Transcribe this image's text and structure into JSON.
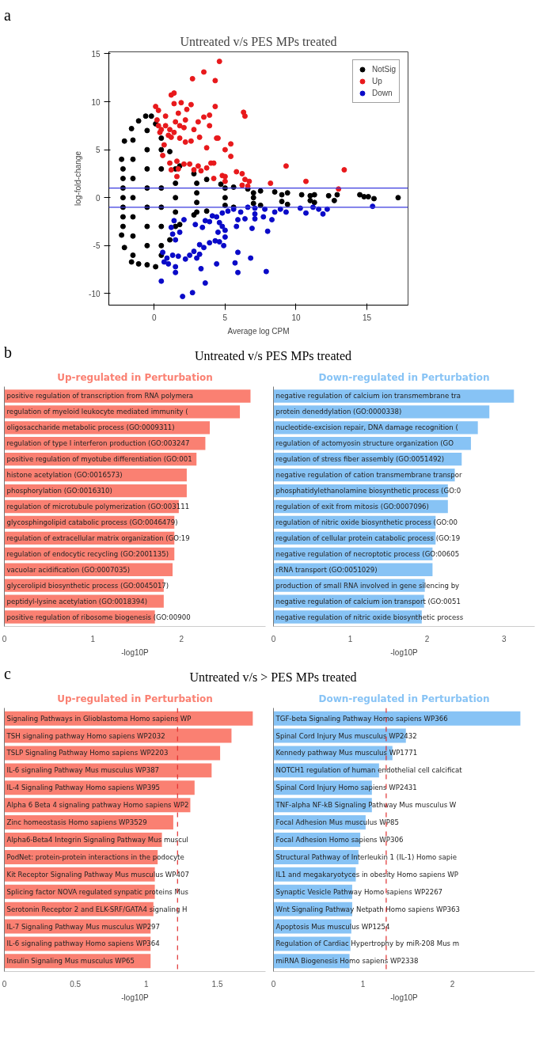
{
  "chart_data": [
    {
      "type": "scatter",
      "title": "Untreated v/s PES MPs treated",
      "xlabel": "Average log CPM",
      "ylabel": "log-fold-change",
      "annotations": [
        "a"
      ],
      "xlim": [
        -3.2,
        17.9
      ],
      "ylim": [
        -11.2,
        15.2
      ],
      "xticks": [
        0,
        5,
        10,
        15
      ],
      "yticks": [
        -10,
        -5,
        0,
        5,
        10,
        15
      ],
      "grid": false,
      "legend": "top right",
      "marker": "circle",
      "ref_lines": [
        {
          "axis": "y",
          "value": 1,
          "color": "#3a3adf"
        },
        {
          "axis": "y",
          "value": -1,
          "color": "#3a3adf"
        }
      ],
      "series": [
        {
          "name": "NotSig",
          "color": "#000000",
          "x": [
            -2.3,
            -2.1,
            -1.6,
            -1.1,
            -0.6,
            -0.2,
            0.1,
            0.5,
            1.1,
            1.8,
            2.8,
            3.7,
            4.7,
            5.6,
            6.6,
            7.5,
            8.5,
            9.4,
            10.4,
            11.3,
            12.3,
            12.9,
            -2.3,
            -2.1,
            -1.6,
            -1.1,
            -0.5,
            0.1,
            0.5,
            1.1,
            1.8,
            2.8,
            3.7,
            5.6,
            7.5,
            9.4,
            11.3,
            12.7,
            14.5,
            14.8,
            15.1,
            15.5,
            17.2,
            -2.2,
            -2.2,
            -2.2,
            -2.2,
            -2.2,
            -2.2,
            -2.2,
            -1.5,
            -1.5,
            -1.5,
            -1.5,
            -1.5,
            -1.5,
            -1.5,
            -0.5,
            -0.5,
            -0.5,
            -0.5,
            -0.5,
            -0.5,
            -0.5,
            0.5,
            0.5,
            0.5,
            0.5,
            0.5,
            0.5,
            1.5,
            1.5,
            1.5,
            1.5,
            1.5,
            3,
            3,
            3,
            3,
            5,
            5,
            5,
            7,
            7,
            7,
            9,
            9,
            11,
            11
          ],
          "values": [
            4.0,
            5.9,
            7.2,
            8.0,
            8.5,
            8.5,
            7.7,
            6.2,
            4.8,
            3.3,
            2.5,
            1.9,
            1.4,
            1.1,
            0.9,
            0.7,
            0.6,
            0.5,
            0.3,
            0.3,
            0.2,
            0.3,
            -3.9,
            -5.2,
            -6.7,
            -6.9,
            -7.0,
            -7.2,
            -6.0,
            -4.4,
            -2.8,
            -1.8,
            -1.4,
            -1.0,
            -0.8,
            -0.7,
            -0.5,
            -0.3,
            0.3,
            0.1,
            0.1,
            -0.1,
            0.0,
            3,
            2,
            1,
            0,
            -1,
            -2,
            -3,
            6,
            4,
            2,
            0,
            -2,
            -4,
            -6,
            7,
            5,
            3,
            1,
            -1,
            -3,
            -5,
            5,
            3,
            1,
            -1,
            -3,
            -5,
            3,
            1.5,
            0,
            -1.5,
            -3,
            1.5,
            0.5,
            -0.5,
            -1.5,
            1,
            0,
            -0.8,
            0.5,
            0,
            -0.6,
            0.3,
            -0.4,
            0.2,
            -0.3
          ]
        },
        {
          "name": "Up",
          "color": "#e8191c",
          "x": [
            4.6,
            3.5,
            2.7,
            4.3,
            1.2,
            1.4,
            0.1,
            0.3,
            1.4,
            1.9,
            2.6,
            2.3,
            4.3,
            1.7,
            6.3,
            6.4,
            3.9,
            3.5,
            0.8,
            2.2,
            3.1,
            1.5,
            0.2,
            0.3,
            0.8,
            1.8,
            2.1,
            3.9,
            0.5,
            1.1,
            1.4,
            2.8,
            0.4,
            1.0,
            1.2,
            1.8,
            3.2,
            4.4,
            4.5,
            2.2,
            2.6,
            0.7,
            5.4,
            3.7,
            5.0,
            0.6,
            5.4,
            1.1,
            1.6,
            2.1,
            2.5,
            3.1,
            4.0,
            4.2,
            3.7,
            1.2,
            1.7,
            2.8,
            3.3,
            1.6,
            4.8,
            5.0,
            5.8,
            6.2,
            4.2,
            6.4,
            6.7,
            9.3,
            13.4,
            10.7,
            8.2,
            13.0,
            5.0,
            6.2,
            6.6
          ],
          "values": [
            14.2,
            13.1,
            12.4,
            12.2,
            10.7,
            10.9,
            9.5,
            9.1,
            9.8,
            9.9,
            9.7,
            9.2,
            9.5,
            8.8,
            8.9,
            8.5,
            8.6,
            8.4,
            8.5,
            8.1,
            7.9,
            7.9,
            8.1,
            7.5,
            7.5,
            7.5,
            7.3,
            7.5,
            7.1,
            7.1,
            6.8,
            7.1,
            6.8,
            6.5,
            6.3,
            6.2,
            6.3,
            6.2,
            6.2,
            5.8,
            5.9,
            5.5,
            5.6,
            5.2,
            5.0,
            4.4,
            4.3,
            3.6,
            3.8,
            3.5,
            3.5,
            3.3,
            3.6,
            3.6,
            3.1,
            2.9,
            3.0,
            2.9,
            2.8,
            2.2,
            2.3,
            2.2,
            2.7,
            2.5,
            2.0,
            1.9,
            1.7,
            3.3,
            2.9,
            1.7,
            1.5,
            0.9,
            1.7,
            1.3,
            1.2
          ]
        },
        {
          "name": "Down",
          "color": "#0a0ac8",
          "x": [
            15.4,
            2.0,
            2.7,
            0.5,
            3.6,
            1.5,
            3.3,
            5.9,
            7.9,
            4.4,
            5.7,
            1.5,
            0.7,
            1.0,
            0.6,
            0.9,
            1.3,
            1.7,
            2.2,
            2.5,
            2.8,
            3.2,
            3.0,
            5.9,
            6.8,
            3.2,
            3.5,
            3.9,
            4.3,
            4.6,
            4.9,
            5.0,
            1.5,
            1.3,
            1.8,
            1.2,
            1.4,
            2.1,
            2.9,
            3.4,
            3.6,
            3.9,
            4.5,
            5.0,
            4.4,
            4.6,
            4.8,
            5.8,
            6.9,
            8.0,
            5.9,
            6.4,
            7.1,
            7.7,
            8.3,
            5.2,
            5.6,
            6.1,
            6.6,
            7.1,
            7.8,
            8.5,
            8.9,
            9.3,
            10.3,
            10.7,
            11.2,
            11.6,
            11.9,
            12.2,
            4.8,
            4.1,
            7.1
          ],
          "values": [
            -0.9,
            -10.3,
            -9.9,
            -8.7,
            -8.9,
            -7.8,
            -7.4,
            -7.8,
            -7.7,
            -6.9,
            -6.8,
            -7.2,
            -6.7,
            -6.9,
            -5.7,
            -6.3,
            -6.0,
            -6.1,
            -6.4,
            -6.0,
            -5.6,
            -5.9,
            -6.3,
            -5.7,
            -6.3,
            -4.9,
            -5.2,
            -4.7,
            -4.5,
            -4.6,
            -5.0,
            -4.1,
            -4.4,
            -3.8,
            -3.6,
            -3.1,
            -2.4,
            -2.3,
            -2.8,
            -3.1,
            -2.4,
            -2.5,
            -3.6,
            -3.4,
            -2.0,
            -2.6,
            -3.0,
            -3.0,
            -3.2,
            -3.5,
            -2.3,
            -2.2,
            -2.2,
            -2.0,
            -2.3,
            -1.4,
            -1.2,
            -1.5,
            -1.0,
            -1.1,
            -1.2,
            -1.5,
            -1.2,
            -1.5,
            -1.1,
            -1.6,
            -1.0,
            -1.2,
            -1.7,
            -1.2,
            -1.6,
            -1.9,
            -1.7
          ]
        }
      ]
    },
    {
      "type": "bar",
      "orientation": "horizontal",
      "title": "Up-regulated in Perturbation",
      "xlabel": "-log10P",
      "annotations": [
        "b",
        "Untreated v/s PES MPs treated"
      ],
      "xlim": [
        0,
        2.95
      ],
      "xticks": [
        0,
        1,
        2
      ],
      "tick_labels": "x",
      "grid": false,
      "categories": [
        "positive regulation of transcription from RNA polymera",
        "regulation of myeloid leukocyte mediated immunity (",
        "oligosaccharide metabolic process (GO:0009311)",
        "regulation of type I interferon production (GO:003247",
        "positive regulation of myotube differentiation (GO:001",
        "histone acetylation (GO:0016573)",
        "phosphorylation (GO:0016310)",
        "regulation of microtubule polymerization (GO:003111",
        "glycosphingolipid catabolic process (GO:0046479)",
        "regulation of extracellular matrix organization (GO:19",
        "regulation of endocytic recycling (GO:2001135)",
        "vacuolar acidification (GO:0007035)",
        "glycerolipid biosynthetic process (GO:0045017)",
        "peptidyl-lysine acetylation (GO:0018394)",
        "positive regulation of ribosome biogenesis (GO:00900"
      ],
      "series": [
        {
          "color": "#fa8072",
          "values": [
            2.78,
            2.66,
            2.32,
            2.27,
            2.17,
            2.06,
            2.06,
            1.97,
            1.92,
            1.92,
            1.92,
            1.9,
            1.8,
            1.8,
            1.7
          ]
        }
      ]
    },
    {
      "type": "bar",
      "orientation": "horizontal",
      "title": "Down-regulated in Perturbation",
      "xlabel": "-log10P",
      "xlim": [
        0,
        3.4
      ],
      "xticks": [
        0,
        1,
        2,
        3
      ],
      "tick_labels": "x",
      "grid": false,
      "categories": [
        "negative regulation of calcium ion transmembrane tra",
        "protein deneddylation (GO:0000338)",
        "nucleotide-excision repair, DNA damage recognition (",
        "regulation of actomyosin structure organization (GO",
        "regulation of stress fiber assembly (GO:0051492)",
        "negative regulation of cation transmembrane transpor",
        "phosphatidylethanolamine biosynthetic process (GO:0",
        "regulation of exit from mitosis (GO:0007096)",
        "regulation of nitric oxide biosynthetic process (GO:00",
        "regulation of cellular protein catabolic process (GO:19",
        "negative regulation of necroptotic process (GO:00605",
        "rRNA transport (GO:0051029)",
        "production of small RNA involved in gene silencing by",
        "negative regulation of calcium ion transport (GO:0051",
        "negative regulation of nitric oxide biosynthetic process"
      ],
      "series": [
        {
          "color": "#87c3f5",
          "values": [
            3.13,
            2.81,
            2.66,
            2.57,
            2.45,
            2.36,
            2.27,
            2.27,
            2.11,
            2.11,
            2.07,
            2.07,
            1.97,
            1.96,
            1.93
          ]
        }
      ]
    },
    {
      "type": "bar",
      "orientation": "horizontal",
      "title": "Up-regulated in Perturbation",
      "xlabel": "-log10P",
      "annotations": [
        "c",
        "Untreated v/s > PES MPs treated"
      ],
      "xlim": [
        0,
        1.84
      ],
      "xticks": [
        0,
        0.5,
        1,
        1.5
      ],
      "tick_labels": "x",
      "grid": false,
      "ref_lines": [
        {
          "axis": "x",
          "value": 1.22,
          "color": "#e03030",
          "line_style": "dashed"
        }
      ],
      "categories": [
        "Signaling Pathways in Glioblastoma Homo sapiens WP",
        "TSH signaling pathway Homo sapiens WP2032",
        "TSLP Signaling Pathway Homo sapiens WP2203",
        "IL-6 signaling Pathway Mus musculus WP387",
        "IL-4 Signaling Pathway Homo sapiens WP395",
        "Alpha 6 Beta 4 signaling pathway Homo sapiens WP2",
        "Zinc homeostasis Homo sapiens WP3529",
        "Alpha6-Beta4 Integrin Signaling Pathway Mus muscul",
        "PodNet: protein-protein interactions in the podocyte",
        "Kit Receptor Signaling Pathway Mus musculus WP407",
        "Splicing factor NOVA regulated synpatic proteins Mus",
        "Serotonin Receptor 2 and ELK-SRF/GATA4 signaling H",
        "IL-7 Signaling Pathway Mus musculus WP297",
        "IL-6 signaling pathway Homo sapiens WP364",
        "Insulin Signaling Mus musculus WP65"
      ],
      "series": [
        {
          "color": "#fa8072",
          "values": [
            1.75,
            1.6,
            1.52,
            1.46,
            1.34,
            1.31,
            1.19,
            1.11,
            1.08,
            1.06,
            1.06,
            1.05,
            1.03,
            1.03,
            1.03
          ]
        }
      ]
    },
    {
      "type": "bar",
      "orientation": "horizontal",
      "title": "Down-regulated in Perturbation",
      "xlabel": "-log10P",
      "xlim": [
        0,
        2.92
      ],
      "xticks": [
        0,
        1,
        2
      ],
      "tick_labels": "x",
      "grid": false,
      "ref_lines": [
        {
          "axis": "x",
          "value": 1.26,
          "color": "#e03030",
          "line_style": "dashed"
        }
      ],
      "categories": [
        "TGF-beta Signaling Pathway Homo sapiens WP366",
        "Spinal Cord Injury Mus musculus WP2432",
        "Kennedy pathway Mus musculus WP1771",
        "NOTCH1 regulation of human endothelial cell calcificat",
        "Spinal Cord Injury Homo sapiens WP2431",
        "TNF-alpha NF-kB Signaling Pathway Mus musculus W",
        "Focal Adhesion Mus musculus WP85",
        "Focal Adhesion Homo sapiens WP306",
        "Structural Pathway of Interleukin 1 (IL-1) Homo sapie",
        "IL1 and megakaryotyces in obesity Homo sapiens WP",
        "Synaptic Vesicle Pathway Homo sapiens WP2267",
        "Wnt Signaling Pathway Netpath Homo sapiens WP363",
        "Apoptosis Mus musculus WP1254",
        "Regulation of Cardiac Hypertrophy by miR-208 Mus m",
        "miRNA Biogenesis Homo sapiens WP2338"
      ],
      "series": [
        {
          "color": "#87c3f5",
          "values": [
            2.76,
            1.48,
            1.33,
            1.18,
            1.1,
            1.1,
            1.03,
            0.97,
            0.95,
            0.92,
            0.88,
            0.88,
            0.87,
            0.86,
            0.85
          ]
        }
      ]
    }
  ]
}
